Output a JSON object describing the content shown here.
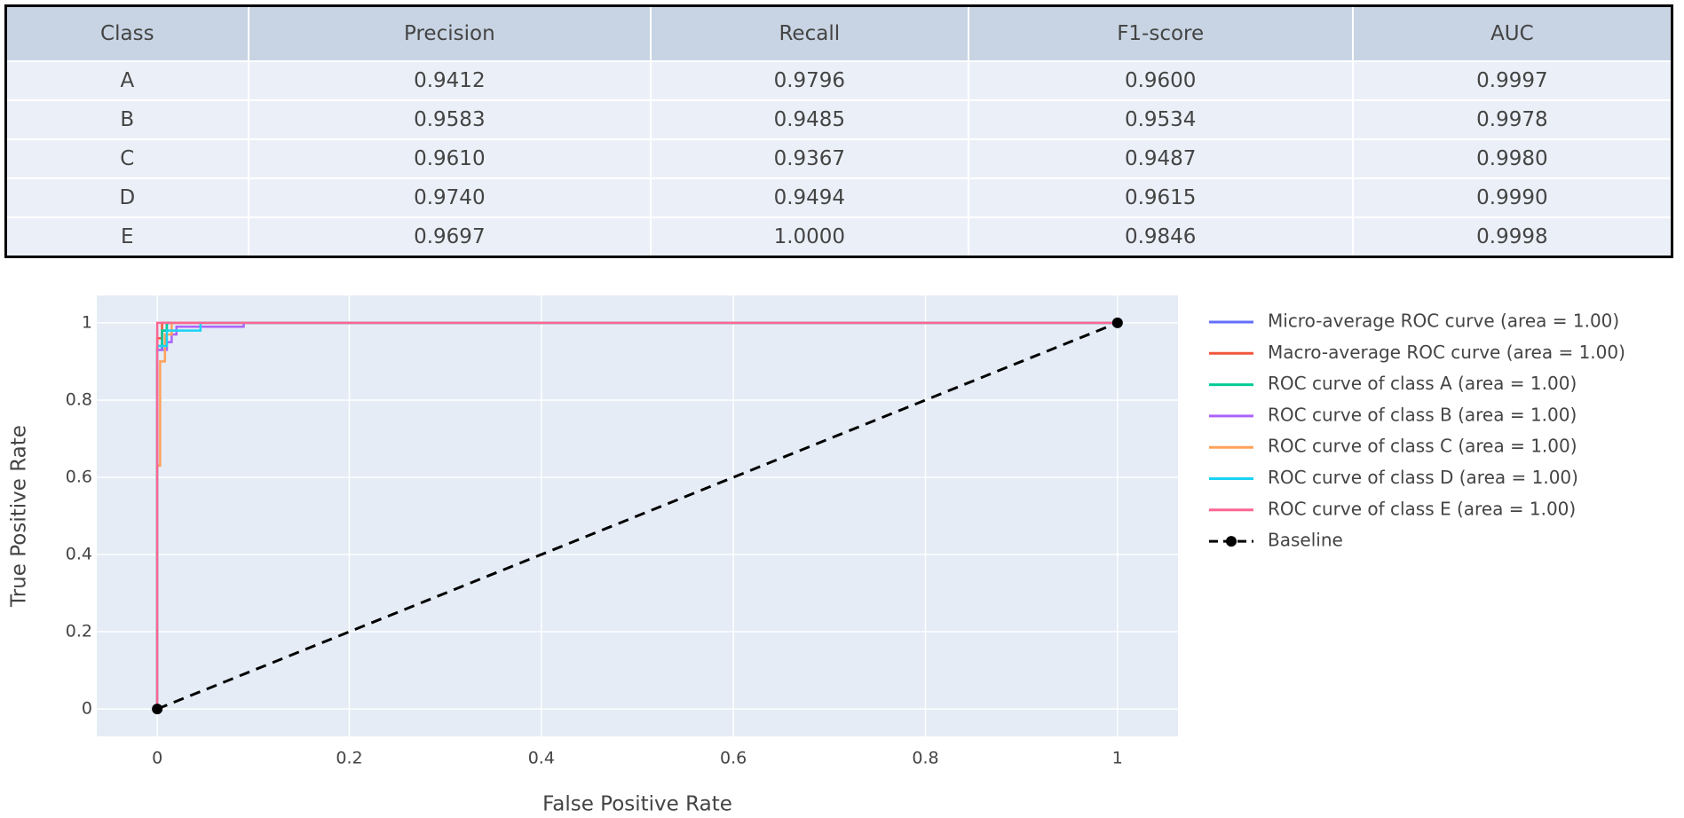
{
  "table": {
    "header": [
      "Class",
      "Precision",
      "Recall",
      "F1-score",
      "AUC"
    ],
    "rows": [
      [
        "A",
        "0.9412",
        "0.9796",
        "0.9600",
        "0.9997"
      ],
      [
        "B",
        "0.9583",
        "0.9485",
        "0.9534",
        "0.9978"
      ],
      [
        "C",
        "0.9610",
        "0.9367",
        "0.9487",
        "0.9980"
      ],
      [
        "D",
        "0.9740",
        "0.9494",
        "0.9615",
        "0.9990"
      ],
      [
        "E",
        "0.9697",
        "1.0000",
        "0.9846",
        "0.9998"
      ]
    ]
  },
  "chart_data": {
    "type": "line",
    "x_label": "False Positive Rate",
    "y_label": "True Positive Rate",
    "xlim": [
      -0.063,
      1.063
    ],
    "ylim": [
      -0.071,
      1.071
    ],
    "xticks": [
      0,
      0.2,
      0.4,
      0.6,
      0.8,
      1
    ],
    "yticks": [
      0,
      0.2,
      0.4,
      0.6,
      0.8,
      1
    ],
    "grid": true,
    "legend": "right",
    "series": [
      {
        "name": "Micro-average ROC curve (area = 1.00)",
        "color": "#636efa",
        "x": [
          0,
          0,
          0.005,
          0.005,
          0.01,
          0.01,
          1
        ],
        "values": [
          0,
          0.93,
          0.93,
          0.98,
          0.98,
          1,
          1
        ]
      },
      {
        "name": "Macro-average ROC curve (area = 1.00)",
        "color": "#ef553b",
        "x": [
          0,
          0,
          0.005,
          0.005,
          1
        ],
        "values": [
          0,
          0.96,
          0.96,
          1,
          1
        ]
      },
      {
        "name": "ROC curve of class A (area = 1.00)",
        "color": "#00cc96",
        "x": [
          0,
          0,
          0.005,
          0.005,
          0.01,
          0.01,
          1
        ],
        "values": [
          0,
          0.94,
          0.94,
          0.98,
          0.98,
          1,
          1
        ]
      },
      {
        "name": "ROC curve of class B (area = 1.00)",
        "color": "#ab63fa",
        "x": [
          0,
          0,
          0.01,
          0.01,
          0.015,
          0.015,
          0.02,
          0.02,
          0.09,
          0.09,
          1
        ],
        "values": [
          0,
          0.93,
          0.93,
          0.95,
          0.95,
          0.97,
          0.97,
          0.99,
          0.99,
          1,
          1
        ]
      },
      {
        "name": "ROC curve of class C (area = 1.00)",
        "color": "#ffa15a",
        "x": [
          0,
          0,
          0.003,
          0.003,
          0.008,
          0.008,
          0.015,
          0.015,
          1
        ],
        "values": [
          0,
          0.63,
          0.63,
          0.9,
          0.9,
          0.97,
          0.97,
          1,
          1
        ]
      },
      {
        "name": "ROC curve of class D (area = 1.00)",
        "color": "#19d3f3",
        "x": [
          0,
          0,
          0.01,
          0.01,
          0.045,
          0.045,
          1
        ],
        "values": [
          0,
          0.94,
          0.94,
          0.98,
          0.98,
          1,
          1
        ]
      },
      {
        "name": "ROC curve of class E (area = 1.00)",
        "color": "#ff6692",
        "x": [
          0,
          0,
          1
        ],
        "values": [
          0,
          1,
          1
        ]
      },
      {
        "name": "Baseline",
        "color": "#000000",
        "dash": true,
        "markers": true,
        "x": [
          0,
          1
        ],
        "values": [
          0,
          1
        ]
      }
    ]
  }
}
